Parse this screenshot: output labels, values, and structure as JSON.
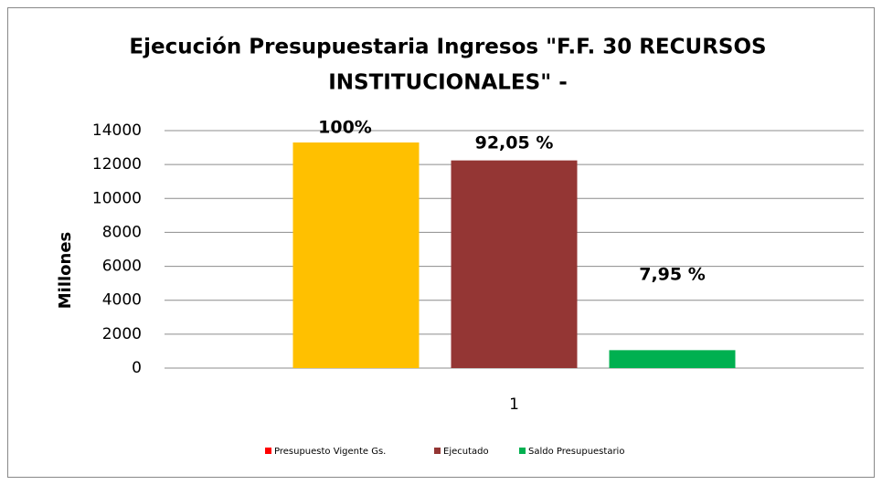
{
  "chart_data": {
    "type": "bar",
    "title": [
      "Ejecución Presupuestaria Ingresos  \"F.F. 30 RECURSOS",
      "INSTITUCIONALES\" -"
    ],
    "y_label": "Millones",
    "categories": [
      "1"
    ],
    "series": [
      {
        "name": "Presupuesto Vigente  Gs.",
        "color": "#ffc000",
        "legend_color": "#ff0000",
        "values": [
          13300
        ],
        "percent": [
          100
        ],
        "percent_labels": [
          "100%"
        ]
      },
      {
        "name": "Ejecutado",
        "color": "#943634",
        "values": [
          12243
        ],
        "percent": [
          92.05
        ],
        "percent_labels": [
          "92,05 %"
        ]
      },
      {
        "name": "Saldo Presupuestario",
        "color": "#00b050",
        "values": [
          1057
        ],
        "percent": [
          7.95
        ],
        "percent_labels": [
          "7,95 %"
        ]
      }
    ],
    "ylim": [
      0,
      14000
    ],
    "yticks": [
      0,
      2000,
      4000,
      6000,
      8000,
      10000,
      12000,
      14000
    ],
    "grid": true,
    "legend": "bottom"
  }
}
